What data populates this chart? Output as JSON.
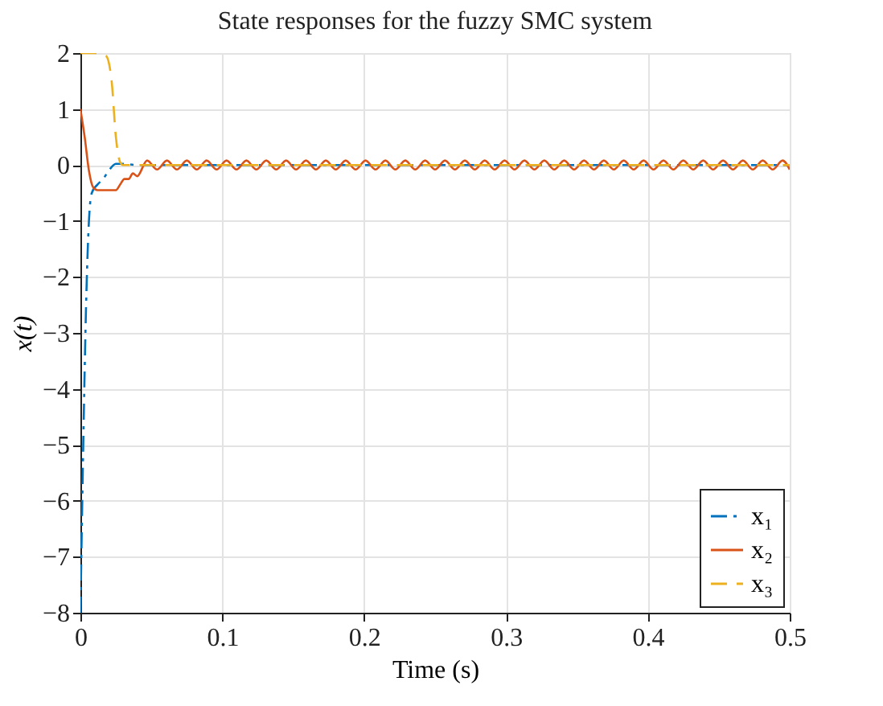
{
  "chart_data": {
    "type": "line",
    "title": "State responses for the fuzzy SMC system",
    "xlabel": "Time (s)",
    "ylabel": "x(t)",
    "xlim": [
      0,
      0.5
    ],
    "xticks": [
      0,
      0.1,
      0.2,
      0.3,
      0.4,
      0.5
    ],
    "ylim": [
      -8,
      2
    ],
    "yticks": [
      {
        "value": -8,
        "label": "−8"
      },
      {
        "value": -7,
        "label": "−7"
      },
      {
        "value": -6,
        "label": "−6"
      },
      {
        "value": -5,
        "label": "−5"
      },
      {
        "value": -4,
        "label": "−4"
      },
      {
        "value": -3,
        "label": "−3"
      },
      {
        "value": -2,
        "label": "−2"
      },
      {
        "value": -1,
        "label": "−1"
      },
      0,
      1,
      2
    ],
    "grid": true,
    "legend": "bottom right",
    "marker": "none",
    "series": [
      {
        "name": "x₁",
        "color": "#0072bd",
        "line_style": "dashdot",
        "x": [
          0,
          0.002,
          0.004,
          0.006,
          0.008,
          0.012,
          0.016,
          0.02,
          0.025,
          0.03,
          0.04,
          0.5
        ],
        "values": [
          -8,
          -5,
          -2.5,
          -1,
          -0.5,
          -0.35,
          -0.25,
          -0.1,
          0.02,
          0.02,
          0,
          0
        ]
      },
      {
        "name": "x₂",
        "color": "#d95319",
        "line_style": "solid",
        "x": [
          0,
          0.003,
          0.006,
          0.009,
          0.012,
          0.02,
          0.025,
          0.028,
          0.031,
          0.034,
          0.037,
          0.04,
          0.047,
          0.054,
          0.061,
          0.068,
          0.075,
          0.082,
          0.089,
          0.096,
          0.103,
          0.11,
          0.117,
          0.124,
          0.131,
          0.138,
          0.145,
          0.152,
          0.159,
          0.166,
          0.173,
          0.18,
          0.187,
          0.194,
          0.201,
          0.208,
          0.215,
          0.222,
          0.229,
          0.236,
          0.243,
          0.25,
          0.257,
          0.264,
          0.271,
          0.278,
          0.285,
          0.292,
          0.299,
          0.306,
          0.313,
          0.32,
          0.327,
          0.334,
          0.341,
          0.348,
          0.355,
          0.362,
          0.369,
          0.376,
          0.383,
          0.39,
          0.397,
          0.404,
          0.411,
          0.418,
          0.425,
          0.432,
          0.439,
          0.446,
          0.453,
          0.46,
          0.467,
          0.474,
          0.481,
          0.488,
          0.495,
          0.5
        ],
        "values": [
          1,
          0.5,
          -0.1,
          -0.4,
          -0.45,
          -0.45,
          -0.45,
          -0.35,
          -0.25,
          -0.25,
          -0.15,
          -0.2,
          0.08,
          -0.08,
          0.08,
          -0.08,
          0.08,
          -0.08,
          0.08,
          -0.08,
          0.08,
          -0.08,
          0.08,
          -0.08,
          0.08,
          -0.08,
          0.08,
          -0.08,
          0.08,
          -0.08,
          0.08,
          -0.08,
          0.08,
          -0.08,
          0.08,
          -0.08,
          0.08,
          -0.08,
          0.08,
          -0.08,
          0.08,
          -0.08,
          0.08,
          -0.08,
          0.08,
          -0.08,
          0.08,
          -0.08,
          0.08,
          -0.08,
          0.08,
          -0.08,
          0.08,
          -0.08,
          0.08,
          -0.08,
          0.08,
          -0.08,
          0.08,
          -0.08,
          0.08,
          -0.08,
          0.08,
          -0.08,
          0.08,
          -0.08,
          0.08,
          -0.08,
          0.08,
          -0.08,
          0.08,
          -0.08,
          0.08,
          -0.08,
          0.08,
          -0.08,
          0.08,
          -0.08
        ]
      },
      {
        "name": "x₃",
        "color": "#edb120",
        "line_style": "dashed",
        "x": [
          0,
          0.01,
          0.018,
          0.022,
          0.025,
          0.028,
          0.03,
          0.04,
          0.5
        ],
        "values": [
          2,
          2,
          1.95,
          1.5,
          0.5,
          0.05,
          0,
          0,
          0
        ]
      }
    ]
  }
}
